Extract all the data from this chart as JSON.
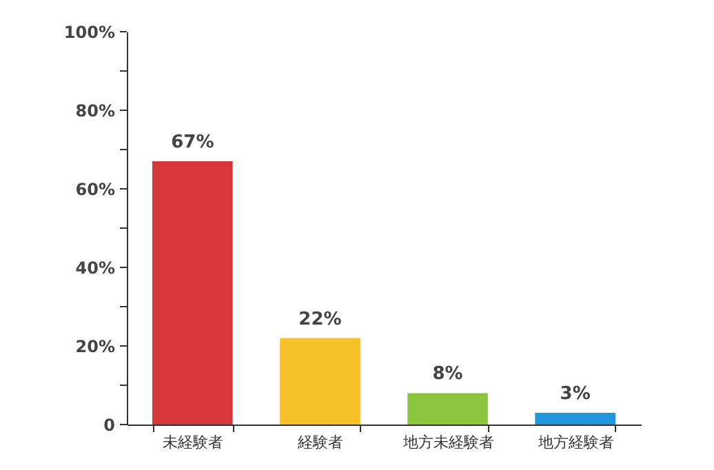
{
  "chart_data": {
    "type": "bar",
    "categories": [
      "未経験者",
      "経験者",
      "地方未経験者",
      "地方経験者"
    ],
    "values": [
      67,
      22,
      8,
      3
    ],
    "colors": [
      "#d8373a",
      "#f7c12a",
      "#8cc63f",
      "#2196dc"
    ],
    "value_labels": [
      "67%",
      "22%",
      "8%",
      "3%"
    ],
    "ylim": [
      0,
      100
    ],
    "yticks": [
      0,
      {
        "value": 10,
        "label": null
      },
      {
        "value": 20,
        "label": "20%"
      },
      {
        "value": 30,
        "label": null
      },
      {
        "value": 40,
        "label": "40%"
      },
      {
        "value": 50,
        "label": null
      },
      {
        "value": 60,
        "label": "60%"
      },
      {
        "value": 70,
        "label": null
      },
      {
        "value": 80,
        "label": "80%"
      },
      {
        "value": 90,
        "label": null
      },
      {
        "value": 100,
        "label": "100%"
      }
    ],
    "grid": false
  }
}
